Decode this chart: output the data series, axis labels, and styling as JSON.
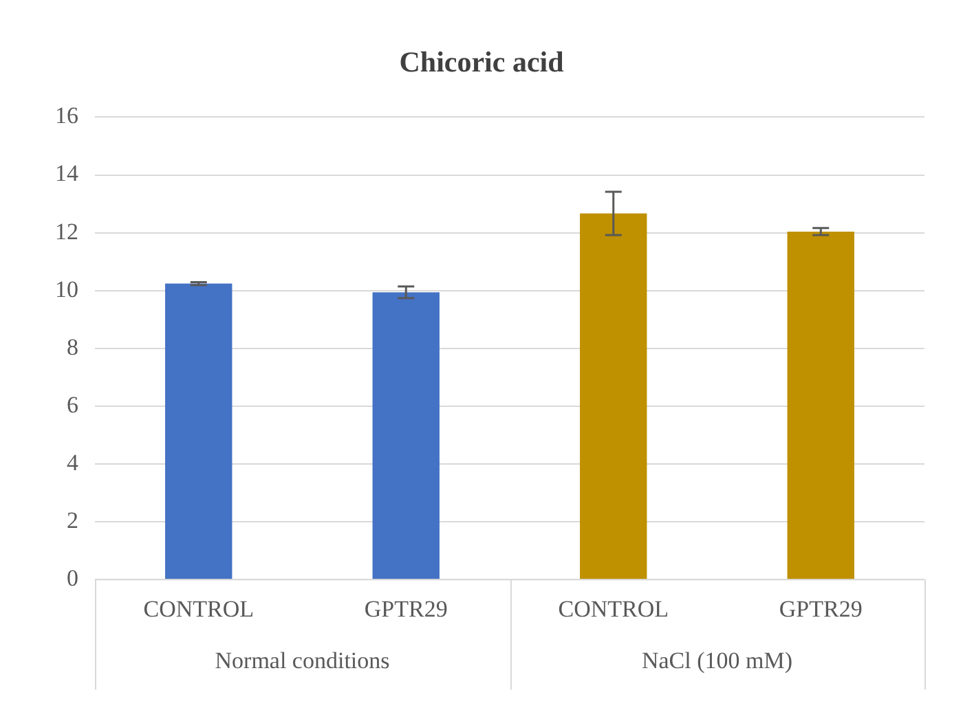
{
  "chart_data": {
    "type": "bar",
    "title": "Chicoric acid",
    "categories": [
      "CONTROL",
      "GPTR29",
      "CONTROL",
      "GPTR29"
    ],
    "series": [
      {
        "name": "Normal conditions",
        "color": "#4472c4",
        "values": [
          10.24,
          9.94,
          null,
          null
        ],
        "errors": [
          0.05,
          0.2,
          null,
          null
        ]
      },
      {
        "name": "NaCl (100 mM)",
        "color": "#bf9000",
        "values": [
          null,
          null,
          12.67,
          12.04
        ],
        "errors": [
          null,
          null,
          0.75,
          0.12
        ]
      }
    ],
    "ylim": [
      0,
      16
    ],
    "yticks": [
      0,
      2,
      4,
      6,
      8,
      10,
      12,
      14,
      16
    ],
    "grid": "y",
    "legend": false
  }
}
